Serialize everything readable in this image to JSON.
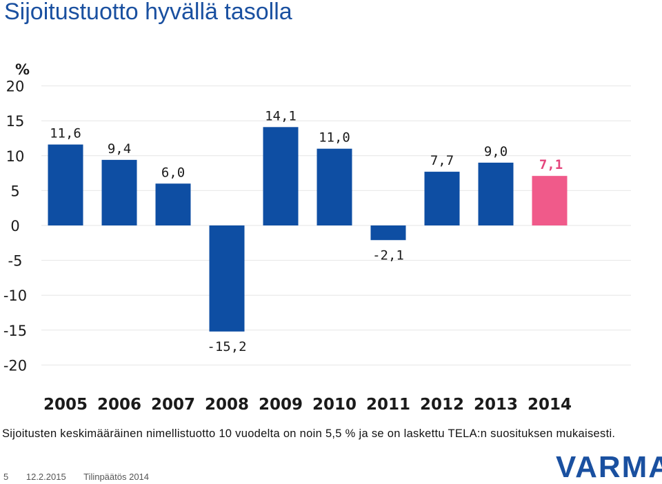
{
  "page": {
    "title": "Sijoitustuotto hyvällä tasolla",
    "note": "Sijoitusten keskimääräinen nimellistuotto 10 vuodelta on noin 5,5 % ja se on laskettu TELA:n suosituksen mukaisesti.",
    "footer": {
      "page_number": "5",
      "date": "12.2.2015",
      "section": "Tilinpäätös 2014"
    },
    "logo_text": "VARMA"
  },
  "chart_data": {
    "type": "bar",
    "title": "",
    "xlabel": "",
    "ylabel": "%",
    "ylim": [
      -20,
      20
    ],
    "yticks": [
      20,
      15,
      10,
      5,
      0,
      -5,
      -10,
      -15,
      -20
    ],
    "ytick_labels": [
      "20",
      "15",
      "10",
      "5",
      "0",
      "-5",
      "-10",
      "-15",
      "-20"
    ],
    "categories": [
      "2005",
      "2006",
      "2007",
      "2008",
      "2009",
      "2010",
      "2011",
      "2012",
      "2013",
      "2014"
    ],
    "values": [
      11.6,
      9.4,
      6.0,
      -15.2,
      14.1,
      11.0,
      -2.1,
      7.7,
      9.0,
      7.1
    ],
    "data_labels": [
      "11,6",
      "9,4",
      "6,0",
      "-15,2",
      "14,1",
      "11,0",
      "-2,1",
      "7,7",
      "9,0",
      "7,1"
    ],
    "grid": true,
    "colors": {
      "bar": "#0e4ea3",
      "highlight_bar": "#f05a8a",
      "highlight_label": "#e5467d",
      "grid": "#e6e6e6",
      "label": "#1a1a1a"
    },
    "highlight_index": 9
  }
}
